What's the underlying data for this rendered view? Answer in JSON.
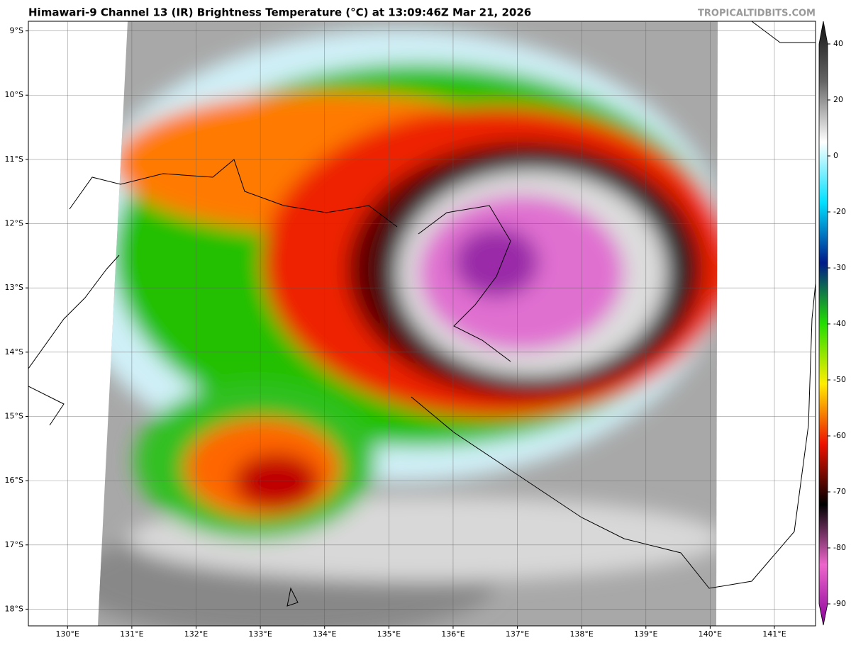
{
  "header": {
    "title": "Himawari-9 Channel 13 (IR) Brightness Temperature (°C) at 13:09:46Z Mar 21, 2026",
    "watermark": "TROPICALTIDBITS.COM"
  },
  "map": {
    "xlim": [
      129.39,
      141.64
    ],
    "ylim": [
      -18.26,
      -8.85
    ],
    "grid": true,
    "xticks": [
      {
        "value": 130,
        "label": "130°E"
      },
      {
        "value": 131,
        "label": "131°E"
      },
      {
        "value": 132,
        "label": "132°E"
      },
      {
        "value": 133,
        "label": "133°E"
      },
      {
        "value": 134,
        "label": "134°E"
      },
      {
        "value": 135,
        "label": "135°E"
      },
      {
        "value": 136,
        "label": "136°E"
      },
      {
        "value": 137,
        "label": "137°E"
      },
      {
        "value": 138,
        "label": "138°E"
      },
      {
        "value": 139,
        "label": "139°E"
      },
      {
        "value": 140,
        "label": "140°E"
      },
      {
        "value": 141,
        "label": "141°E"
      }
    ],
    "yticks": [
      {
        "value": -9,
        "label": "9°S"
      },
      {
        "value": -10,
        "label": "10°S"
      },
      {
        "value": -11,
        "label": "11°S"
      },
      {
        "value": -12,
        "label": "12°S"
      },
      {
        "value": -13,
        "label": "13°S"
      },
      {
        "value": -14,
        "label": "14°S"
      },
      {
        "value": -15,
        "label": "15°S"
      },
      {
        "value": -16,
        "label": "16°S"
      },
      {
        "value": -17,
        "label": "17°S"
      },
      {
        "value": -18,
        "label": "18°S"
      }
    ]
  },
  "colorbar": {
    "ticks": [
      40,
      20,
      0,
      -20,
      -30,
      -40,
      -50,
      -60,
      -70,
      -80,
      -90
    ]
  }
}
